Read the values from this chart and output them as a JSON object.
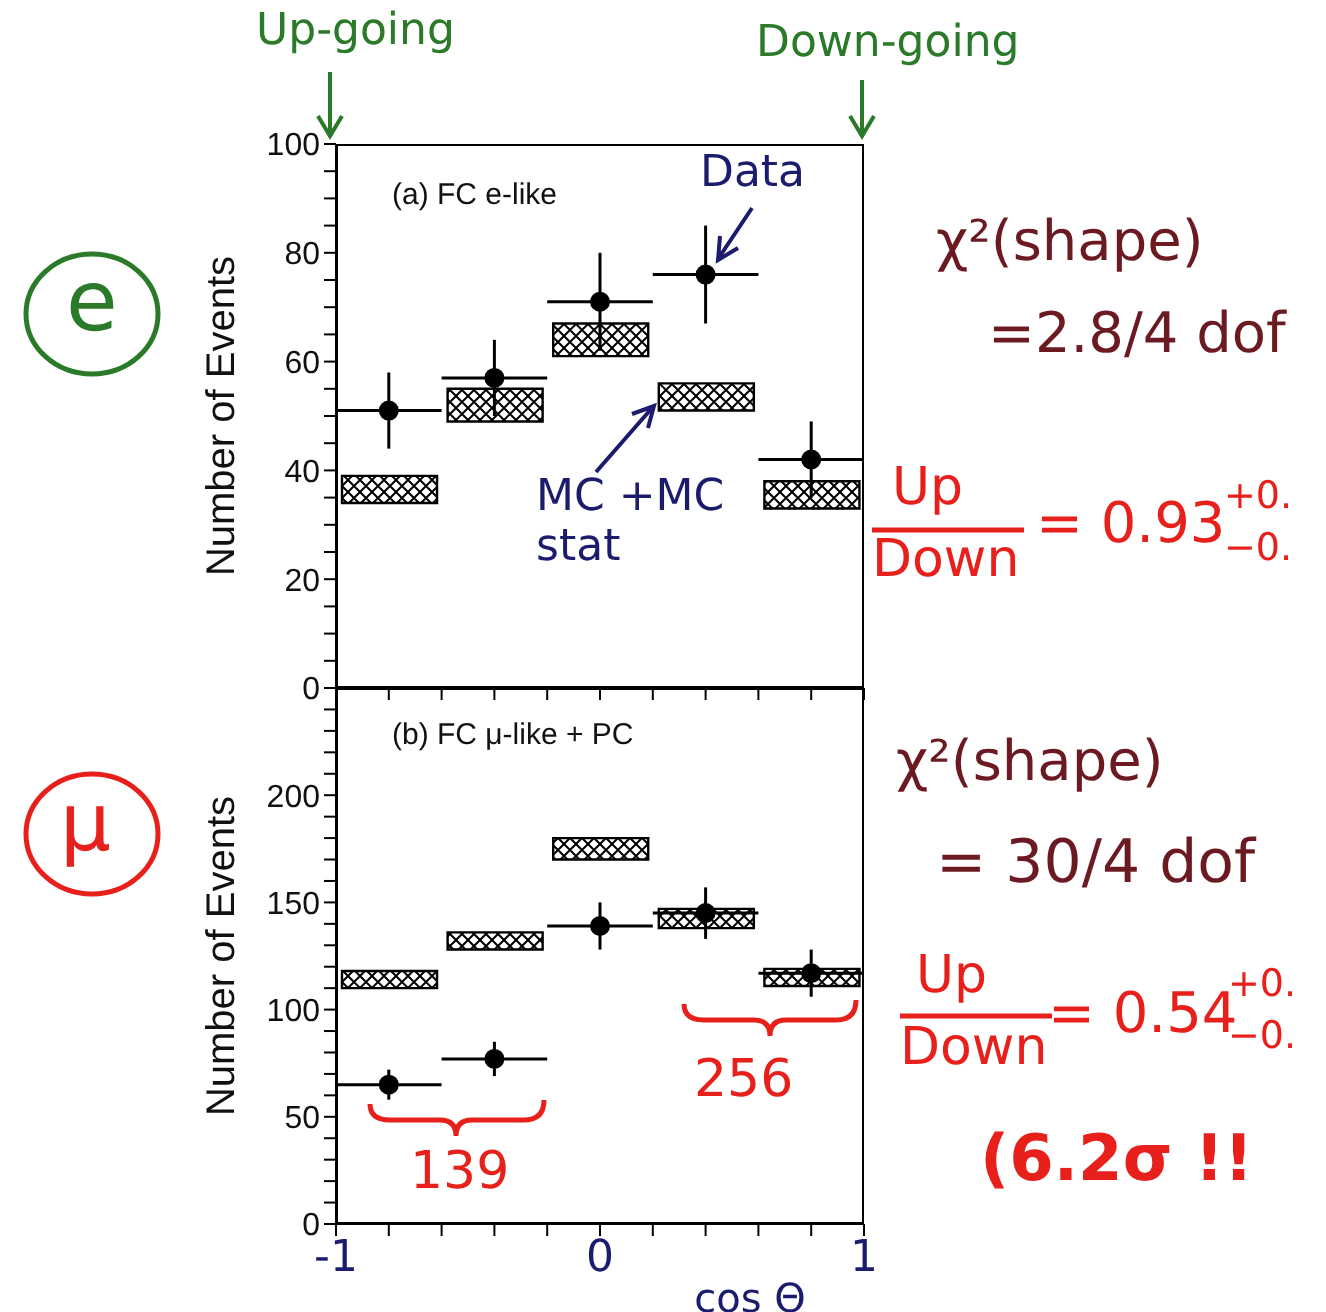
{
  "chart_data": [
    {
      "type": "bar",
      "ylabel": "Number of Events",
      "x": [
        -0.8,
        -0.4,
        0,
        0.4,
        0.8
      ],
      "xlim": [
        -1,
        1
      ],
      "xticks": [
        {
          "value": -1,
          "label": null
        },
        {
          "value": -0.8,
          "label": null
        },
        {
          "value": -0.6,
          "label": null
        },
        {
          "value": -0.4,
          "label": null
        },
        {
          "value": -0.2,
          "label": null
        },
        {
          "value": 0,
          "label": null
        },
        {
          "value": 0.2,
          "label": null
        },
        {
          "value": 0.4,
          "label": null
        },
        {
          "value": 0.6,
          "label": null
        },
        {
          "value": 0.8,
          "label": null
        },
        {
          "value": 1,
          "label": null
        }
      ],
      "ylim": [
        0,
        100
      ],
      "yticks": [
        0,
        {
          "value": 5,
          "label": null
        },
        {
          "value": 10,
          "label": null
        },
        {
          "value": 15,
          "label": null
        },
        20,
        {
          "value": 25,
          "label": null
        },
        {
          "value": 30,
          "label": null
        },
        {
          "value": 35,
          "label": null
        },
        40,
        {
          "value": 45,
          "label": null
        },
        {
          "value": 50,
          "label": null
        },
        {
          "value": 55,
          "label": null
        },
        60,
        {
          "value": 65,
          "label": null
        },
        {
          "value": 70,
          "label": null
        },
        {
          "value": 75,
          "label": null
        },
        80,
        {
          "value": 85,
          "label": null
        },
        {
          "value": 90,
          "label": null
        },
        {
          "value": 95,
          "label": null
        },
        100
      ],
      "tick_labels": "y",
      "series": [
        {
          "name": "MC +MC stat",
          "color": "#000000",
          "base": [
            34,
            49,
            61,
            51,
            33
          ],
          "values": [
            5,
            6,
            6,
            5,
            5
          ]
        },
        {
          "name": "Data",
          "type": "scatter",
          "color": "#000000",
          "marker": "circle",
          "values": [
            51,
            57,
            71,
            76,
            42
          ],
          "errors": [
            7,
            7,
            9,
            9,
            7
          ],
          "xerrors": [
            0.2,
            0.2,
            0.2,
            0.2,
            0.2
          ]
        }
      ],
      "annotations": [
        "Up-going",
        "Down-going",
        "(a) FC e-like",
        "e",
        "χ²(shape)",
        "=2.8/4 dof",
        "Up",
        "Down",
        "= 0.93",
        "+0.",
        "−0."
      ]
    },
    {
      "type": "bar",
      "xlabel": "cos Θ",
      "ylabel": "Number of Events",
      "x": [
        -0.8,
        -0.4,
        0,
        0.4,
        0.8
      ],
      "xlim": [
        -1,
        1
      ],
      "xticks": [
        -1,
        {
          "value": -0.8,
          "label": null
        },
        {
          "value": -0.6,
          "label": null
        },
        {
          "value": -0.4,
          "label": null
        },
        {
          "value": -0.2,
          "label": null
        },
        0,
        {
          "value": 0.2,
          "label": null
        },
        {
          "value": 0.4,
          "label": null
        },
        {
          "value": 0.6,
          "label": null
        },
        {
          "value": 0.8,
          "label": null
        },
        1
      ],
      "ylim": [
        0,
        250
      ],
      "yticks": [
        0,
        {
          "value": 10,
          "label": null
        },
        {
          "value": 20,
          "label": null
        },
        {
          "value": 30,
          "label": null
        },
        {
          "value": 40,
          "label": null
        },
        50,
        {
          "value": 60,
          "label": null
        },
        {
          "value": 70,
          "label": null
        },
        {
          "value": 80,
          "label": null
        },
        {
          "value": 90,
          "label": null
        },
        100,
        {
          "value": 110,
          "label": null
        },
        {
          "value": 120,
          "label": null
        },
        {
          "value": 130,
          "label": null
        },
        {
          "value": 140,
          "label": null
        },
        150,
        {
          "value": 160,
          "label": null
        },
        {
          "value": 170,
          "label": null
        },
        {
          "value": 180,
          "label": null
        },
        {
          "value": 190,
          "label": null
        },
        200,
        {
          "value": 210,
          "label": null
        },
        {
          "value": 220,
          "label": null
        },
        {
          "value": 230,
          "label": null
        },
        {
          "value": 240,
          "label": null
        },
        {
          "value": 250,
          "label": null
        }
      ],
      "series": [
        {
          "color": "#000000",
          "base": [
            110,
            128,
            170,
            138,
            111
          ],
          "values": [
            8,
            8,
            10,
            9,
            8
          ]
        },
        {
          "type": "scatter",
          "color": "#000000",
          "marker": "circle",
          "values": [
            65,
            77,
            139,
            145,
            117
          ],
          "errors": [
            7,
            8,
            11,
            12,
            11
          ],
          "xerrors": [
            0.2,
            0.2,
            0.2,
            0.2,
            0.2
          ]
        }
      ],
      "annotations": [
        "(b) FC μ-like + PC",
        "μ",
        "139",
        "256",
        "χ²(shape)",
        "= 30/4 dof",
        "Up",
        "Down",
        "= 0.54",
        "+0.",
        "−0.",
        "(6.2σ !!"
      ]
    }
  ]
}
